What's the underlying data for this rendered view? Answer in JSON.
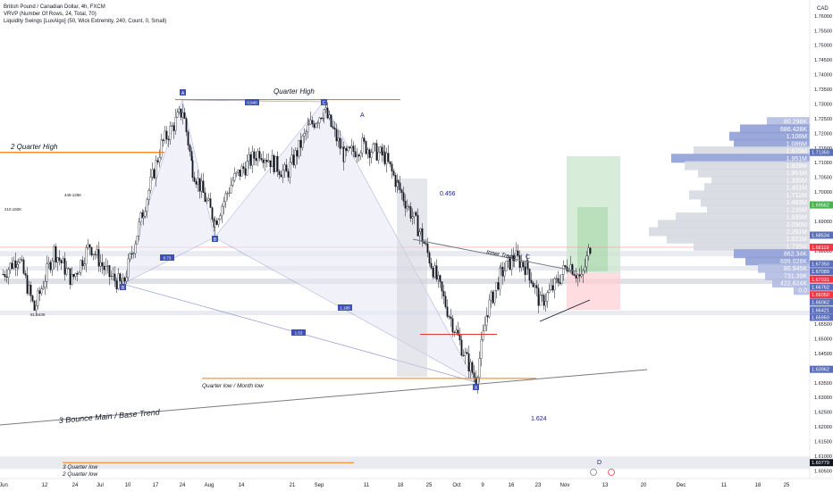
{
  "header": {
    "symbol_title": "British Pound / Canadian Dollar, 4h, FXCM",
    "indicator_1": "VRVP (Number Of Rows, 24, Total, 70)",
    "indicator_2": "Liquidity Swings [LuxAlgo] (50, Wick Extremity, 240, Count, 0, Small)"
  },
  "price_axis": {
    "currency": "CAD",
    "ticks": [
      "1.76000",
      "1.75500",
      "1.75000",
      "1.74500",
      "1.74000",
      "1.73500",
      "1.73000",
      "1.72500",
      "1.72000",
      "1.71500",
      "1.71000",
      "1.70500",
      "1.70000",
      "1.69500",
      "1.69000",
      "1.68500",
      "1.68000",
      "1.67500",
      "1.67000",
      "1.66500",
      "1.66000",
      "1.65500",
      "1.65000",
      "1.64500",
      "1.64000",
      "1.63500",
      "1.63000",
      "1.62500",
      "1.62000",
      "1.61500",
      "1.61000",
      "1.60500"
    ]
  },
  "time_axis": {
    "labels": [
      "Jun",
      "12",
      "24",
      "Jul",
      "10",
      "17",
      "24",
      "Aug",
      "14",
      "21",
      "Sep",
      "11",
      "18",
      "25",
      "Oct",
      "9",
      "16",
      "23",
      "Nov",
      "13",
      "20",
      "Dec",
      "11",
      "18",
      "25"
    ]
  },
  "annotations": {
    "quarter_high": "Quarter High",
    "two_quarter_high": "2 Quarter High",
    "quarter_low_month_low": "Quarter low  / Month low",
    "three_bounce": "3 Bounce Main / Base Trend",
    "inner_trend": "Inner Trend",
    "three_quarter_low": "3 Quarter low",
    "two_quarter_low": "2 Quarter low",
    "label_a": "A",
    "label_c": "C",
    "label_d": "D",
    "ratio_0456": "0.456",
    "ratio_1624": "1.624",
    "marker_b_left": "B",
    "marker_b_mid": "B",
    "marker_c_top": "C",
    "marker_x": "X",
    "marker_a_top": "A",
    "liq_1": "210.192K",
    "liq_2": "449.125K",
    "liq_3": "81.443K",
    "pattern_ratio_top": "0.940",
    "pattern_ratio_1": "0.73",
    "pattern_ratio_2": "1.53",
    "pattern_ratio_3": "1.185"
  },
  "volume_profile": {
    "bars": [
      {
        "label": "80.298K",
        "price": 1.724,
        "width": 48,
        "color": "#b2bde0"
      },
      {
        "label": "686.428K",
        "price": 1.7215,
        "width": 78,
        "color": "#8f9fd6"
      },
      {
        "label": "1.106M",
        "price": 1.719,
        "width": 90,
        "color": "#8f9fd6"
      },
      {
        "label": "1.086M",
        "price": 1.7165,
        "width": 85,
        "color": "#8f9fd6"
      },
      {
        "label": "1.675M",
        "price": 1.714,
        "width": 130,
        "color": "#d6d9e0"
      },
      {
        "label": "1.951M",
        "price": 1.7115,
        "width": 155,
        "color": "#8f9fd6"
      },
      {
        "label": "1.809M",
        "price": 1.709,
        "width": 140,
        "color": "#d6d9e0"
      },
      {
        "label": "1.951M",
        "price": 1.7065,
        "width": 125,
        "color": "#d6d9e0"
      },
      {
        "label": "1.335M",
        "price": 1.704,
        "width": 110,
        "color": "#d6d9e0"
      },
      {
        "label": "1.401M",
        "price": 1.7015,
        "width": 118,
        "color": "#d6d9e0"
      },
      {
        "label": "1.712M",
        "price": 1.699,
        "width": 135,
        "color": "#d6d9e0"
      },
      {
        "label": "1.483M",
        "price": 1.6965,
        "width": 122,
        "color": "#d6d9e0"
      },
      {
        "label": "1.235M",
        "price": 1.694,
        "width": 115,
        "color": "#d6d9e0"
      },
      {
        "label": "1.935M",
        "price": 1.6915,
        "width": 150,
        "color": "#d6d9e0"
      },
      {
        "label": "2.090M",
        "price": 1.689,
        "width": 170,
        "color": "#d6d9e0"
      },
      {
        "label": "2.261M",
        "price": 1.6865,
        "width": 180,
        "color": "#d6d9e0"
      },
      {
        "label": "1.921M",
        "price": 1.684,
        "width": 160,
        "color": "#d6d9e0"
      },
      {
        "label": "1.735M",
        "price": 1.6815,
        "width": 130,
        "color": "#d6d9e0"
      },
      {
        "label": "862.34K",
        "price": 1.679,
        "width": 85,
        "color": "#8f9fd6"
      },
      {
        "label": "699.028K",
        "price": 1.6765,
        "width": 72,
        "color": "#8f9fd6"
      },
      {
        "label": "80.945K",
        "price": 1.674,
        "width": 58,
        "color": "#b2bde0"
      },
      {
        "label": "731.39K",
        "price": 1.6715,
        "width": 50,
        "color": "#b2bde0"
      },
      {
        "label": "422.624K",
        "price": 1.669,
        "width": 42,
        "color": "#b2bde0"
      },
      {
        "label": "0.0",
        "price": 1.6665,
        "width": 18,
        "color": "#b2bde0"
      }
    ]
  },
  "price_tags": [
    {
      "label": "1.71350",
      "price": 1.7135,
      "bg": "#5b6fb8",
      "fg": "#ffffff"
    },
    {
      "label": "1.69562",
      "price": 1.6956,
      "bg": "#4caf50",
      "fg": "#ffffff"
    },
    {
      "label": "1.68534",
      "price": 1.6853,
      "bg": "#5b6fb8",
      "fg": "#ffffff"
    },
    {
      "label": "1.68119",
      "price": 1.6812,
      "bg": "#f23645",
      "fg": "#ffffff"
    },
    {
      "label": "1.67350",
      "price": 1.6755,
      "bg": "#5b6fb8",
      "fg": "#ffffff"
    },
    {
      "label": "1.67089",
      "price": 1.6729,
      "bg": "#5b6fb8",
      "fg": "#ffffff"
    },
    {
      "label": "1.67031",
      "price": 1.6703,
      "bg": "#f23645",
      "fg": "#ffffff"
    },
    {
      "label": "1.66762",
      "price": 1.6676,
      "bg": "#5b6fb8",
      "fg": "#ffffff"
    },
    {
      "label": "1.66050",
      "price": 1.665,
      "bg": "#f23645",
      "fg": "#ffffff"
    },
    {
      "label": "1.66062",
      "price": 1.6625,
      "bg": "#5b6fb8",
      "fg": "#ffffff"
    },
    {
      "label": "1.66421",
      "price": 1.6598,
      "bg": "#5b6fb8",
      "fg": "#ffffff"
    },
    {
      "label": "1.65950",
      "price": 1.6573,
      "bg": "#5b6fb8",
      "fg": "#ffffff"
    },
    {
      "label": "1.63962",
      "price": 1.6396,
      "bg": "#5b6fb8",
      "fg": "#ffffff"
    },
    {
      "label": "1.60779",
      "price": 1.6078,
      "bg": "#131722",
      "fg": "#ffffff"
    }
  ],
  "chart_data": {
    "type": "line",
    "title": "British Pound / Canadian Dollar, 4h, FXCM",
    "xlabel": "",
    "ylabel": "",
    "x": [
      "Jun",
      "12",
      "24",
      "Jul",
      "10",
      "17",
      "24",
      "Aug",
      "14",
      "21",
      "Sep",
      "11",
      "18",
      "25",
      "Oct",
      "9",
      "16",
      "23"
    ],
    "series": [
      {
        "values": [
          1.675,
          1.668,
          1.68,
          1.672,
          1.7,
          1.728,
          1.688,
          1.7,
          1.72,
          1.73,
          1.712,
          1.69,
          1.66,
          1.636,
          1.67,
          1.678,
          1.666,
          1.68
        ]
      }
    ],
    "ylim": [
      1.603,
      1.763
    ],
    "grid": false,
    "levels": {
      "quarter_high": 1.7315,
      "two_quarter_high": 1.7135,
      "quarter_low_month_low": 1.6365,
      "two_quarter_low": 1.6078
    },
    "colors": {
      "up": "#26a69a",
      "down": "#ef5350",
      "candle": "#131722",
      "level_line": "#f57c00",
      "trend_line": "#787b86",
      "pattern_fill": "#e8eaf6",
      "target_zone": "#c8e6c9",
      "stop_zone": "#ffcdd2"
    }
  }
}
